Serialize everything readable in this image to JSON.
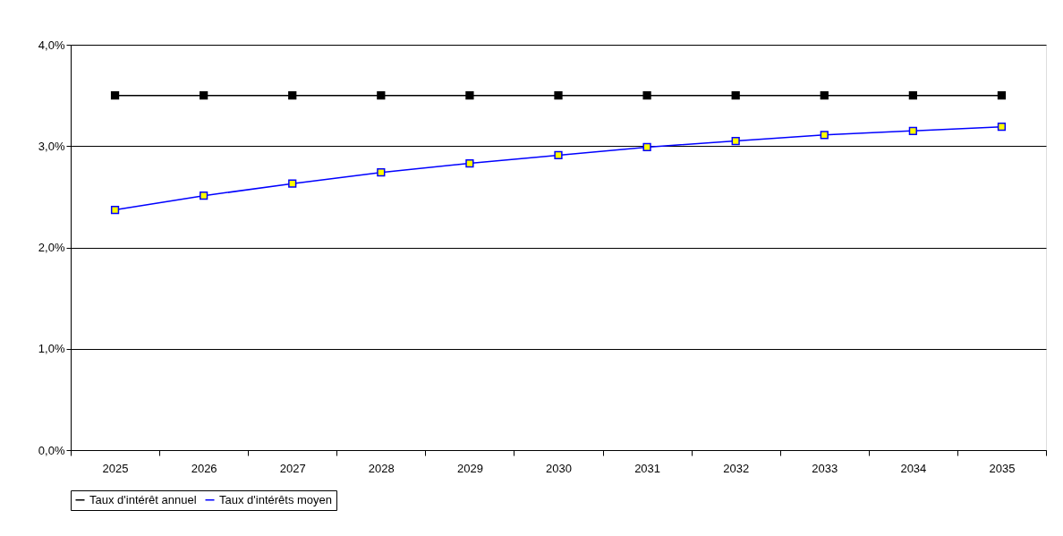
{
  "chart_data": {
    "type": "line",
    "categories": [
      "2025",
      "2026",
      "2027",
      "2028",
      "2029",
      "2030",
      "2031",
      "2032",
      "2033",
      "2034",
      "2035"
    ],
    "series": [
      {
        "name": "Taux d'intérêt annuel",
        "color": "#000000",
        "values": [
          3.5,
          3.5,
          3.5,
          3.5,
          3.5,
          3.5,
          3.5,
          3.5,
          3.5,
          3.5,
          3.5
        ]
      },
      {
        "name": "Taux d'intérêts moyen",
        "color": "#0000ff",
        "colors": [
          "#ffff00",
          "#ffff00",
          "#ffff00",
          "#ffff00",
          "#ffff00",
          "#ffff00",
          "#ffff00",
          "#ffff00",
          "#ffff00",
          "#ffff00",
          "#ffff00"
        ],
        "values": [
          2.37,
          2.51,
          2.63,
          2.74,
          2.83,
          2.91,
          2.99,
          3.05,
          3.11,
          3.15,
          3.19
        ]
      }
    ],
    "ylim": [
      0,
      4
    ],
    "yticks": [
      {
        "value": 0,
        "label": "0,0%"
      },
      {
        "value": 1,
        "label": "1,0%"
      },
      {
        "value": 2,
        "label": "2,0%"
      },
      {
        "value": 3,
        "label": "3,0%"
      },
      {
        "value": 4,
        "label": "4,0%"
      }
    ],
    "grid": "y",
    "legend": "bottom",
    "marker": "square",
    "line_style": "solid"
  }
}
